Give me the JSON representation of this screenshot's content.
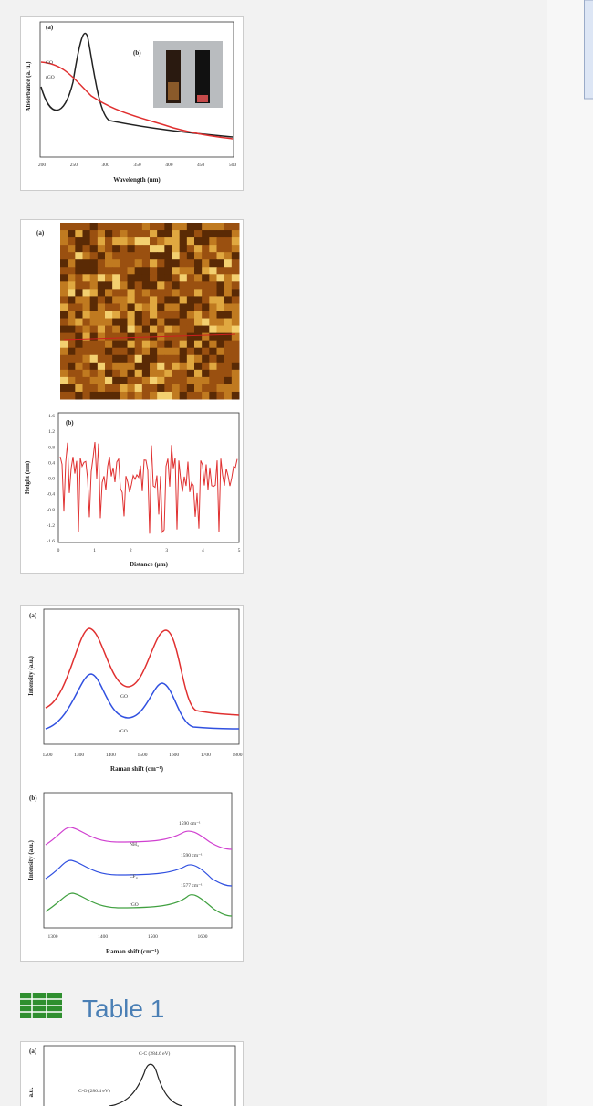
{
  "figures": [
    {
      "panel_a": "(a)",
      "panel_b": "(b)",
      "y_label": "Absorbance (a. u.)",
      "x_label": "Wavelength (nm)",
      "x_ticks": [
        "200",
        "250",
        "300",
        "350",
        "400",
        "450",
        "500"
      ],
      "curve_labels": [
        "GO",
        "rGO"
      ]
    },
    {
      "panel_a": "(a)",
      "panel_b": "(b)",
      "y_label": "Height (nm)",
      "x_label": "Distance (μm)",
      "y_ticks": [
        "1.6",
        "1.2",
        "0.8",
        "0.4",
        "0.0",
        "-0.4",
        "-0.8",
        "-1.2",
        "-1.6"
      ],
      "x_ticks": [
        "0",
        "1",
        "2",
        "3",
        "4",
        "5"
      ]
    },
    {
      "panel_a": "(a)",
      "y_label_a": "Intensity (a.u.)",
      "x_label_a": "Raman shift (cm⁻¹)",
      "x_ticks_a": [
        "1200",
        "1300",
        "1400",
        "1500",
        "1600",
        "1700",
        "1800"
      ],
      "curve_labels_a": [
        "GO",
        "rGO"
      ],
      "panel_b": "(b)",
      "y_label_b": "Intensity (a.u.)",
      "x_label_b": "Raman shift (cm⁻¹)",
      "x_ticks_b": [
        "1300",
        "1400",
        "1500",
        "1600"
      ],
      "curve_labels_b": [
        "NH₃",
        "CF₄",
        "rGO"
      ],
      "peak_labels_b": [
        "1590 cm⁻¹",
        "1590 cm⁻¹",
        "1577 cm⁻¹"
      ]
    },
    {
      "panel_a": "(a)",
      "y_label": "a.u.",
      "peak_labels": [
        "C-C (284.6 eV)",
        "C-O (286.4 eV)"
      ]
    }
  ],
  "table_link": "Table 1"
}
